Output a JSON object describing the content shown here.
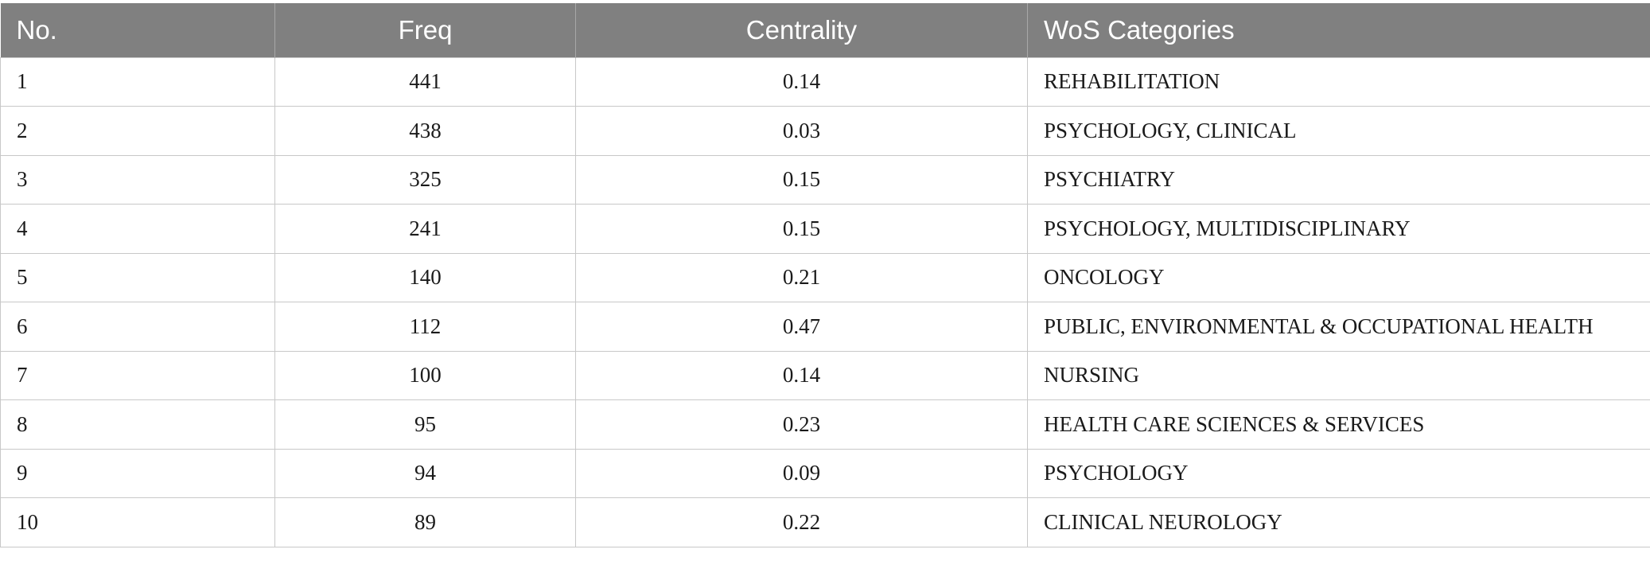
{
  "table": {
    "headers": [
      "No.",
      "Freq",
      "Centrality",
      "WoS Categories"
    ],
    "rows": [
      {
        "no": "1",
        "freq": "441",
        "centrality": "0.14",
        "category": "REHABILITATION"
      },
      {
        "no": "2",
        "freq": "438",
        "centrality": "0.03",
        "category": "PSYCHOLOGY, CLINICAL"
      },
      {
        "no": "3",
        "freq": "325",
        "centrality": "0.15",
        "category": "PSYCHIATRY"
      },
      {
        "no": "4",
        "freq": "241",
        "centrality": "0.15",
        "category": "PSYCHOLOGY, MULTIDISCIPLINARY"
      },
      {
        "no": "5",
        "freq": "140",
        "centrality": "0.21",
        "category": "ONCOLOGY"
      },
      {
        "no": "6",
        "freq": "112",
        "centrality": "0.47",
        "category": "PUBLIC, ENVIRONMENTAL & OCCUPATIONAL HEALTH"
      },
      {
        "no": "7",
        "freq": "100",
        "centrality": "0.14",
        "category": "NURSING"
      },
      {
        "no": "8",
        "freq": "95",
        "centrality": "0.23",
        "category": "HEALTH CARE SCIENCES & SERVICES"
      },
      {
        "no": "9",
        "freq": "94",
        "centrality": "0.09",
        "category": "PSYCHOLOGY"
      },
      {
        "no": "10",
        "freq": "89",
        "centrality": "0.22",
        "category": "CLINICAL NEUROLOGY"
      }
    ]
  },
  "colors": {
    "header_bg": "#808080",
    "header_text": "#ffffff",
    "grid_line": "#c8c8c8"
  }
}
